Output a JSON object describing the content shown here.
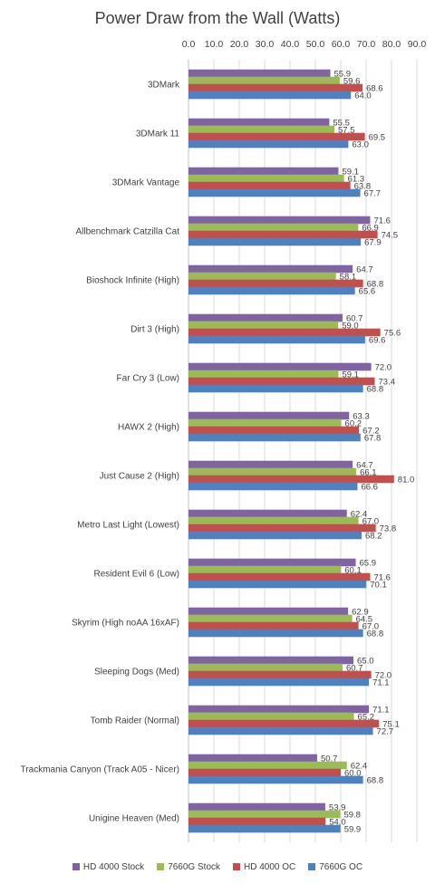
{
  "chart_data": {
    "type": "bar",
    "orientation": "horizontal",
    "title": "Power Draw from the Wall (Watts)",
    "xlim": [
      0,
      90
    ],
    "x_ticks": [
      "0.0",
      "10.0",
      "20.0",
      "30.0",
      "40.0",
      "50.0",
      "60.0",
      "70.0",
      "80.0",
      "90.0"
    ],
    "x_axis_position": "top",
    "grid": true,
    "legend_position": "bottom",
    "categories": [
      "3DMark",
      "3DMark 11",
      "3DMark Vantage",
      "Allbenchmark Catzilla Cat",
      "Bioshock Infinite (High)",
      "Dirt 3 (High)",
      "Far Cry 3 (Low)",
      "HAWX 2 (High)",
      "Just Cause 2 (High)",
      "Metro Last Light (Lowest)",
      "Resident Evil 6 (Low)",
      "Skyrim (High noAA 16xAF)",
      "Sleeping Dogs (Med)",
      "Tomb Raider (Normal)",
      "Trackmania Canyon (Track A05 - Nicer)",
      "Unigine Heaven (Med)"
    ],
    "series": [
      {
        "name": "HD 4000 Stock",
        "color": "#8064a2",
        "values": [
          55.9,
          55.5,
          59.1,
          71.6,
          64.7,
          60.7,
          72.0,
          63.3,
          64.7,
          62.4,
          65.9,
          62.9,
          65.0,
          71.1,
          50.7,
          53.9
        ],
        "labels": [
          "55.9",
          "55.5",
          "59.1",
          "71.6",
          "64.7",
          "60.7",
          "72.0",
          "63.3",
          "64.7",
          "62.4",
          "65.9",
          "62.9",
          "65.0",
          "71.1",
          "50.7",
          "53.9"
        ]
      },
      {
        "name": "7660G Stock",
        "color": "#9bbb59",
        "values": [
          59.6,
          57.5,
          61.3,
          66.9,
          58.1,
          59.0,
          59.1,
          60.2,
          66.1,
          67.0,
          60.1,
          64.5,
          60.7,
          65.2,
          62.4,
          59.8
        ],
        "labels": [
          "59.6",
          "57.5",
          "61.3",
          "66.9",
          "58.1",
          "59.0",
          "59.1",
          "60.2",
          "66.1",
          "67.0",
          "60.1",
          "64.5",
          "60.7",
          "65.2",
          "62.4",
          "59.8"
        ]
      },
      {
        "name": "HD 4000 OC",
        "color": "#c0504d",
        "values": [
          68.6,
          69.5,
          63.8,
          74.5,
          68.8,
          75.6,
          73.4,
          67.2,
          81.0,
          73.8,
          71.6,
          67.0,
          72.0,
          75.1,
          60.0,
          54.0
        ],
        "labels": [
          "68.6",
          "69.5",
          "63.8",
          "74.5",
          "68.8",
          "75.6",
          "73.4",
          "67.2",
          "81.0",
          "73.8",
          "71.6",
          "67.0",
          "72.0",
          "75.1",
          "60.0",
          "54.0"
        ]
      },
      {
        "name": "7660G OC",
        "color": "#4f81bd",
        "values": [
          64.0,
          63.0,
          67.7,
          67.9,
          65.6,
          69.6,
          68.8,
          67.8,
          66.6,
          68.2,
          70.1,
          68.8,
          71.1,
          72.7,
          68.8,
          59.9
        ],
        "labels": [
          "64.0",
          "63.0",
          "67.7",
          "67.9",
          "65.6",
          "69.6",
          "68.8",
          "67.8",
          "66.6",
          "68.2",
          "70.1",
          "68.8",
          "71.1",
          "72.7",
          "68.8",
          "59.9"
        ]
      }
    ]
  }
}
